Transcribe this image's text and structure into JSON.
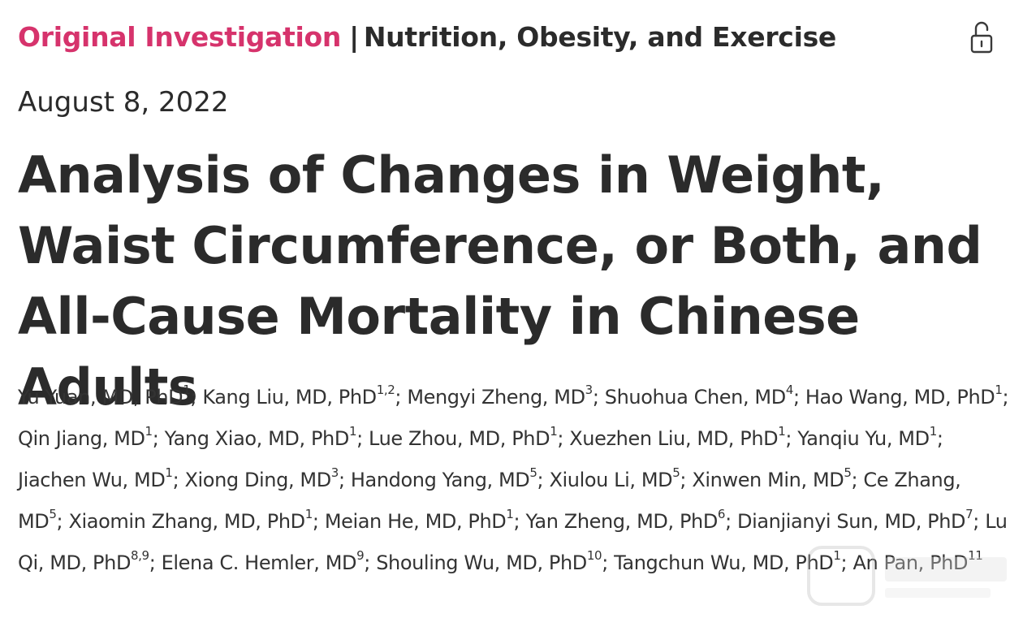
{
  "header": {
    "article_type": "Original Investigation",
    "separator": "|",
    "topic": "Nutrition, Obesity, and Exercise",
    "lock_icon": "open-access-lock-icon"
  },
  "date": "August 8, 2022",
  "title": "Analysis of Changes in Weight, Waist Circumference, or Both, and All-Cause Mortality in Chinese Adults",
  "authors": [
    {
      "name": "Yu Yuan, MD, PhD",
      "aff": "1"
    },
    {
      "name": "Kang Liu, MD, PhD",
      "aff": "1,2"
    },
    {
      "name": "Mengyi Zheng, MD",
      "aff": "3"
    },
    {
      "name": "Shuohua Chen, MD",
      "aff": "4"
    },
    {
      "name": "Hao Wang, MD, PhD",
      "aff": "1"
    },
    {
      "name": "Qin Jiang, MD",
      "aff": "1"
    },
    {
      "name": "Yang Xiao, MD, PhD",
      "aff": "1"
    },
    {
      "name": "Lue Zhou, MD, PhD",
      "aff": "1"
    },
    {
      "name": "Xuezhen Liu, MD, PhD",
      "aff": "1"
    },
    {
      "name": "Yanqiu Yu, MD",
      "aff": "1"
    },
    {
      "name": "Jiachen Wu, MD",
      "aff": "1"
    },
    {
      "name": "Xiong Ding, MD",
      "aff": "3"
    },
    {
      "name": "Handong Yang, MD",
      "aff": "5"
    },
    {
      "name": "Xiulou Li, MD",
      "aff": "5"
    },
    {
      "name": "Xinwen Min, MD",
      "aff": "5"
    },
    {
      "name": "Ce Zhang, MD",
      "aff": "5"
    },
    {
      "name": "Xiaomin Zhang, MD, PhD",
      "aff": "1"
    },
    {
      "name": "Meian He, MD, PhD",
      "aff": "1"
    },
    {
      "name": "Yan Zheng, MD, PhD",
      "aff": "6"
    },
    {
      "name": "Dianjianyi Sun, MD, PhD",
      "aff": "7"
    },
    {
      "name": "Lu Qi, MD, PhD",
      "aff": "8,9"
    },
    {
      "name": "Elena C. Hemler, MD",
      "aff": "9"
    },
    {
      "name": "Shouling Wu, MD, PhD",
      "aff": "10"
    },
    {
      "name": "Tangchun Wu, MD, PhD",
      "aff": "1"
    },
    {
      "name": "An Pan, PhD",
      "aff": "11"
    }
  ],
  "colors": {
    "article_type": "#d6336c",
    "text": "#2b2b2b"
  }
}
